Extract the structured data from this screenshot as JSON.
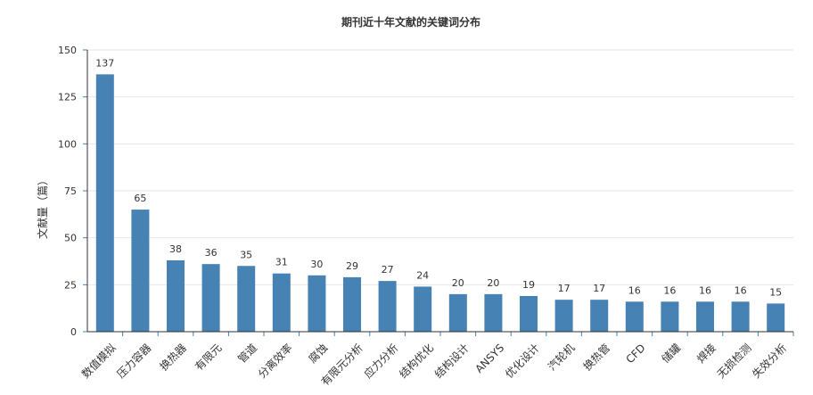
{
  "chart_data": {
    "type": "bar",
    "title": "期刊近十年文献的关键词分布",
    "ylabel": "文献量（篇）",
    "xlabel": "",
    "ylim": [
      0,
      150
    ],
    "yticks": [
      0,
      25,
      50,
      75,
      100,
      125,
      150
    ],
    "grid": true,
    "bar_color": "#4682b4",
    "axis_color": "#4682b4",
    "categories": [
      "数值模拟",
      "压力容器",
      "换热器",
      "有限元",
      "管道",
      "分离效率",
      "腐蚀",
      "有限元分析",
      "应力分析",
      "结构优化",
      "结构设计",
      "ANSYS",
      "优化设计",
      "汽轮机",
      "换热管",
      "CFD",
      "储罐",
      "焊接",
      "无损检测",
      "失效分析"
    ],
    "values": [
      137,
      65,
      38,
      36,
      35,
      31,
      30,
      29,
      27,
      24,
      20,
      20,
      19,
      17,
      17,
      16,
      16,
      16,
      16,
      15
    ]
  }
}
